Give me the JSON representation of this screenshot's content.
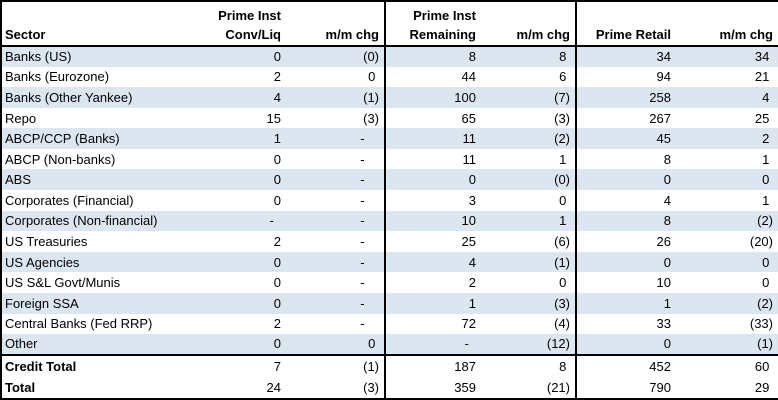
{
  "colors": {
    "row_band": "#DCE6F1",
    "border": "#000000",
    "text": "#000000",
    "background": "#FFFFFF"
  },
  "table": {
    "headers": {
      "sector": "Sector",
      "prime_inst_conv_liq": "Prime Inst\nConv/Liq",
      "mm_chg_1": "m/m chg",
      "prime_inst_remaining": "Prime Inst\nRemaining",
      "mm_chg_2": "m/m chg",
      "prime_retail": "Prime Retail",
      "mm_chg_3": "m/m chg"
    },
    "rows": [
      {
        "sector": "Banks (US)",
        "values": [
          "0",
          "(0)",
          "8",
          "8",
          "34",
          "34"
        ],
        "shaded": true,
        "is_total": false,
        "rule_above": false
      },
      {
        "sector": "Banks (Eurozone)",
        "values": [
          "2",
          "0",
          "44",
          "6",
          "94",
          "21"
        ],
        "shaded": false,
        "is_total": false,
        "rule_above": false
      },
      {
        "sector": "Banks (Other Yankee)",
        "values": [
          "4",
          "(1)",
          "100",
          "(7)",
          "258",
          "4"
        ],
        "shaded": true,
        "is_total": false,
        "rule_above": false
      },
      {
        "sector": "Repo",
        "values": [
          "15",
          "(3)",
          "65",
          "(3)",
          "267",
          "25"
        ],
        "shaded": false,
        "is_total": false,
        "rule_above": false
      },
      {
        "sector": "ABCP/CCP (Banks)",
        "values": [
          "1",
          "-",
          "11",
          "(2)",
          "45",
          "2"
        ],
        "shaded": true,
        "is_total": false,
        "rule_above": false
      },
      {
        "sector": "ABCP (Non-banks)",
        "values": [
          "0",
          "-",
          "11",
          "1",
          "8",
          "1"
        ],
        "shaded": false,
        "is_total": false,
        "rule_above": false
      },
      {
        "sector": "ABS",
        "values": [
          "0",
          "-",
          "0",
          "(0)",
          "0",
          "0"
        ],
        "shaded": true,
        "is_total": false,
        "rule_above": false
      },
      {
        "sector": "Corporates (Financial)",
        "values": [
          "0",
          "-",
          "3",
          "0",
          "4",
          "1"
        ],
        "shaded": false,
        "is_total": false,
        "rule_above": false
      },
      {
        "sector": "Corporates (Non-financial)",
        "values": [
          "-",
          "-",
          "10",
          "1",
          "8",
          "(2)"
        ],
        "shaded": true,
        "is_total": false,
        "rule_above": false
      },
      {
        "sector": "US Treasuries",
        "values": [
          "2",
          "-",
          "25",
          "(6)",
          "26",
          "(20)"
        ],
        "shaded": false,
        "is_total": false,
        "rule_above": false
      },
      {
        "sector": "US Agencies",
        "values": [
          "0",
          "-",
          "4",
          "(1)",
          "0",
          "0"
        ],
        "shaded": true,
        "is_total": false,
        "rule_above": false
      },
      {
        "sector": "US S&L Govt/Munis",
        "values": [
          "0",
          "-",
          "2",
          "0",
          "10",
          "0"
        ],
        "shaded": false,
        "is_total": false,
        "rule_above": false
      },
      {
        "sector": "Foreign SSA",
        "values": [
          "0",
          "-",
          "1",
          "(3)",
          "1",
          "(2)"
        ],
        "shaded": true,
        "is_total": false,
        "rule_above": false
      },
      {
        "sector": "Central Banks (Fed RRP)",
        "values": [
          "2",
          "-",
          "72",
          "(4)",
          "33",
          "(33)"
        ],
        "shaded": false,
        "is_total": false,
        "rule_above": false
      },
      {
        "sector": "Other",
        "values": [
          "0",
          "0",
          "-",
          "(12)",
          "0",
          "(1)"
        ],
        "shaded": true,
        "is_total": false,
        "rule_above": false
      },
      {
        "sector": "Credit Total",
        "values": [
          "7",
          "(1)",
          "187",
          "8",
          "452",
          "60"
        ],
        "shaded": false,
        "is_total": true,
        "rule_above": true
      },
      {
        "sector": "Total",
        "values": [
          "24",
          "(3)",
          "359",
          "(21)",
          "790",
          "29"
        ],
        "shaded": false,
        "is_total": true,
        "rule_above": false
      }
    ]
  }
}
